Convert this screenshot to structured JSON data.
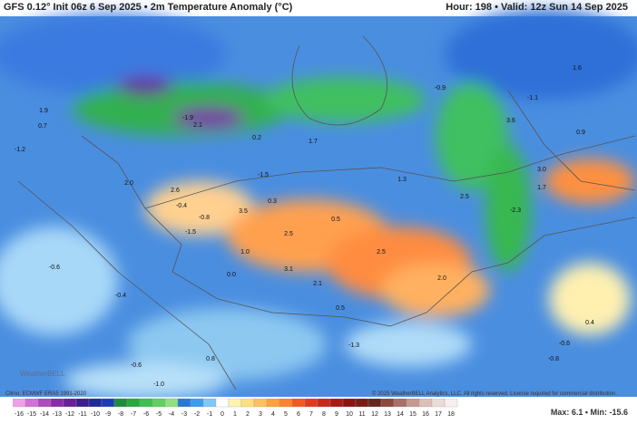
{
  "header": {
    "left": "GFS 0.12° Init 06z 6 Sep 2025 • 2m Temperature Anomaly (°C)",
    "right": "Hour: 198 • Valid: 12z Sun 14 Sep 2025"
  },
  "footer": {
    "climo": "Climo: ECMWF ERA5 1991-2020",
    "copyright": "© 2025 WeatherBELL Analytics, LLC. All rights reserved. License required for commercial distribution.",
    "watermark": "WeatherBELL",
    "stats": "Max: 6.1 • Min: -15.6"
  },
  "map": {
    "labels": [
      "1.9",
      "0.7",
      "-1.2",
      "2.0",
      "2.6",
      "-0.4",
      "-0.8",
      "3.5",
      "0.3",
      "0.5",
      "1.3",
      "2.5",
      "-2.3",
      "1.7",
      "3.0",
      "0.9",
      "-1.1",
      "-0.9",
      "3.6",
      "1.6",
      "-1.5",
      "1.0",
      "2.5",
      "2.5",
      "2.0",
      "3.1",
      "2.1",
      "0.0",
      "-0.6",
      "-0.4",
      "0.5",
      "-1.3",
      "0.4",
      "-0.6",
      "-0.8",
      "-0.6",
      "-1.0",
      "0.8",
      "2.1",
      "1.7",
      "-1.5",
      "0.2",
      "-1.9"
    ]
  },
  "colorbar": {
    "ticks": [
      -16,
      -15,
      -14,
      -13,
      -12,
      -11,
      -10,
      -9,
      -8,
      -7,
      -6,
      -5,
      -4,
      -3,
      -2,
      -1,
      0,
      1,
      2,
      3,
      4,
      5,
      6,
      7,
      8,
      9,
      10,
      11,
      12,
      13,
      14,
      15,
      16,
      17,
      18
    ],
    "colors": [
      "#f0a0e8",
      "#d070d8",
      "#b048c0",
      "#8a2aa8",
      "#6a1e98",
      "#3c1e8c",
      "#1e2a9a",
      "#1e3cb4",
      "#1e8c3c",
      "#28a83c",
      "#3cc050",
      "#60d060",
      "#90e080",
      "#2878d8",
      "#3c9cf0",
      "#80c8f8",
      "#ffffff",
      "#fff4b0",
      "#ffe080",
      "#ffc060",
      "#ffa040",
      "#ff8030",
      "#f05a20",
      "#e03c1c",
      "#c82818",
      "#a81a14",
      "#8c1410",
      "#781c14",
      "#64281c",
      "#8c4a3c",
      "#a8706a",
      "#c89890",
      "#dcc0b8",
      "#ecdcd8",
      "#f8f0f0"
    ]
  }
}
